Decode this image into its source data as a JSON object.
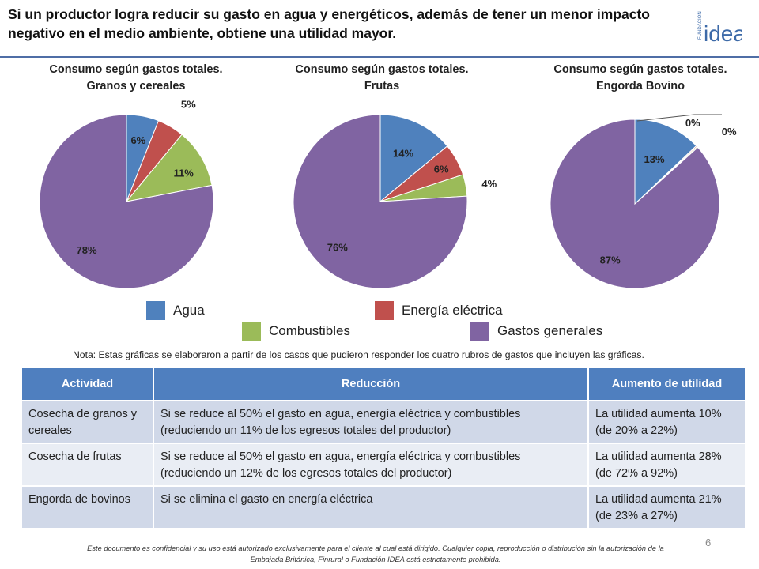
{
  "headline": "Si un productor logra reducir su gasto en agua y energéticos, además de tener un menor impacto negativo en el medio ambiente, obtiene una utilidad mayor.",
  "logo": {
    "small_text": "FUNDACIÓN",
    "big_text": "idea",
    "color": "#3d6aa8"
  },
  "colors": {
    "agua": "#4f81bd",
    "energia": "#c0504d",
    "combustibles": "#9bbb59",
    "gastos": "#8064a2",
    "rule": "#4f6ea6",
    "table_header": "#4f7fbf"
  },
  "legend": [
    {
      "label": "Agua",
      "color": "#4f81bd"
    },
    {
      "label": "Energía eléctrica",
      "color": "#c0504d"
    },
    {
      "label": "Combustibles",
      "color": "#9bbb59"
    },
    {
      "label": "Gastos generales",
      "color": "#8064a2"
    }
  ],
  "chart_data": [
    {
      "type": "pie",
      "title_line1": "Consumo según gastos totales.",
      "title_line2": "Granos y cereales",
      "categories": [
        "Agua",
        "Energía eléctrica",
        "Combustibles",
        "Gastos generales"
      ],
      "values": [
        6,
        5,
        11,
        78
      ],
      "labels": [
        "6%",
        "5%",
        "11%",
        "78%"
      ]
    },
    {
      "type": "pie",
      "title_line1": "Consumo según gastos totales.",
      "title_line2": "Frutas",
      "categories": [
        "Agua",
        "Energía eléctrica",
        "Combustibles",
        "Gastos generales"
      ],
      "values": [
        14,
        6,
        4,
        76
      ],
      "labels": [
        "14%",
        "6%",
        "4%",
        "76%"
      ]
    },
    {
      "type": "pie",
      "title_line1": "Consumo según gastos totales.",
      "title_line2": "Engorda Bovino",
      "categories": [
        "Agua",
        "Energía eléctrica",
        "Combustibles",
        "Gastos generales"
      ],
      "values": [
        13,
        0.2,
        0.2,
        87
      ],
      "labels": [
        "13%",
        "0%",
        "0%",
        "87%"
      ]
    }
  ],
  "note": "Nota: Estas gráficas se elaboraron a partir de los  casos que pudieron responder los cuatro rubros de gastos que incluyen las gráficas.",
  "table": {
    "headers": [
      "Actividad",
      "Reducción",
      "Aumento de utilidad"
    ],
    "rows": [
      [
        "Cosecha de granos y cereales",
        "Si se reduce al 50% el gasto en agua, energía eléctrica y combustibles (reduciendo un 11% de los egresos totales del productor)",
        "La utilidad aumenta 10% (de 20% a 22%)"
      ],
      [
        "Cosecha de frutas",
        "Si se reduce al 50% el gasto en agua, energía eléctrica y combustibles (reduciendo un 12% de los egresos totales del productor)",
        "La utilidad aumenta 28% (de 72% a 92%)"
      ],
      [
        "Engorda de bovinos",
        "Si se elimina el gasto en energía eléctrica",
        "La utilidad aumenta 21% (de 23% a 27%)"
      ]
    ]
  },
  "page_number": "6",
  "footer": "Este documento es confidencial y su uso está autorizado exclusivamente para el cliente al cual está dirigido. Cualquier copia, reproducción o distribución sin la autorización de la Embajada Británica, Finrural o Fundación IDEA está estrictamente prohibida."
}
